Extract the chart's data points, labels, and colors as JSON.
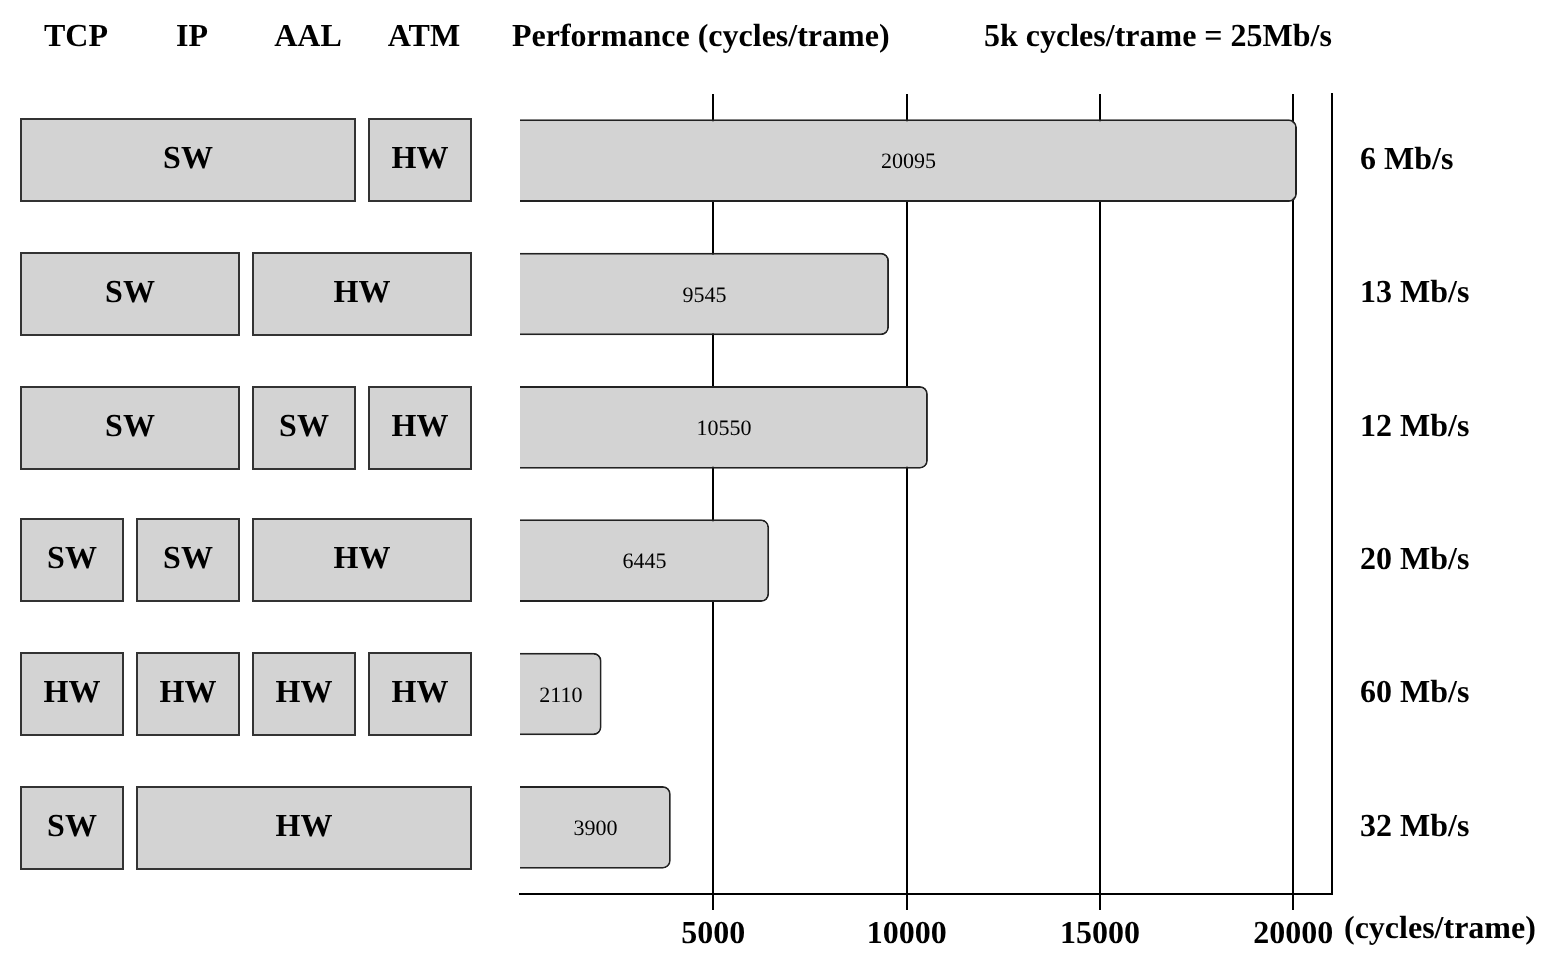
{
  "chart_data": {
    "type": "bar",
    "orientation": "horizontal",
    "title": "Performance (cycles/trame)",
    "subtitle": "5k cycles/trame = 25Mb/s",
    "xlabel": "(cycles/trame)",
    "categories": [
      "6 Mb/s",
      "13 Mb/s",
      "12 Mb/s",
      "20 Mb/s",
      "60 Mb/s",
      "32 Mb/s"
    ],
    "series": [
      {
        "color": "#d3d3d3",
        "values": [
          20095,
          9545,
          10550,
          6445,
          2110,
          3900
        ]
      }
    ],
    "xlim": [
      0,
      21000
    ],
    "xticks": [
      5000,
      10000,
      15000,
      20000
    ],
    "grid": "x",
    "legend": false,
    "data_labels": true,
    "annotations": [
      "TCP",
      "IP",
      "AAL",
      "ATM",
      "SW",
      "HW",
      "SW",
      "HW",
      "SW",
      "SW",
      "HW",
      "SW",
      "SW",
      "HW",
      "HW",
      "HW",
      "HW",
      "HW",
      "SW",
      "HW"
    ]
  }
}
